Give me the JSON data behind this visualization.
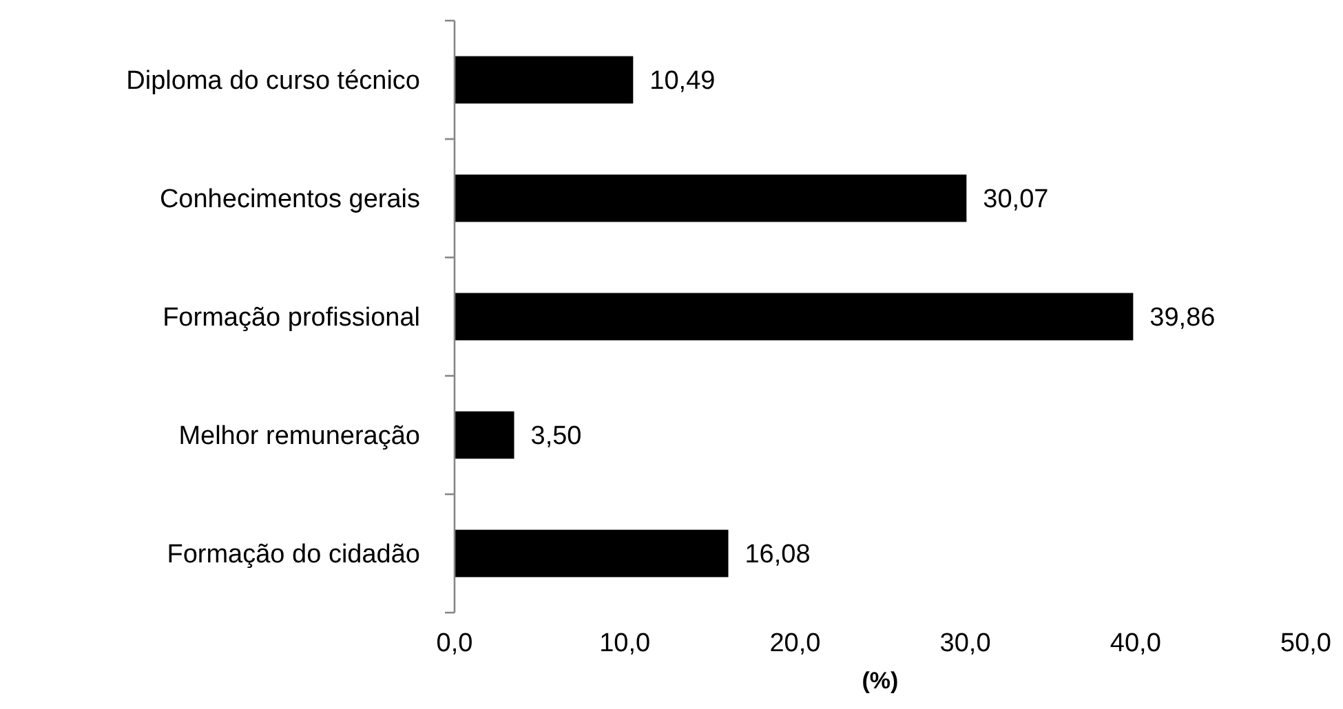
{
  "chart_data": {
    "type": "bar",
    "orientation": "horizontal",
    "xlabel": "(%)",
    "categories": [
      "Diploma do curso técnico",
      "Conhecimentos gerais",
      "Formação profissional",
      "Melhor remuneração",
      "Formação do cidadão"
    ],
    "values": [
      10.49,
      30.07,
      39.86,
      3.5,
      16.08
    ],
    "value_labels": [
      "10,49",
      "30,07",
      "39,86",
      "3,50",
      "16,08"
    ],
    "color": "#000000",
    "xlim": [
      0,
      50
    ],
    "xticks": [
      {
        "value": 0,
        "label": "0,0"
      },
      {
        "value": 10,
        "label": "10,0"
      },
      {
        "value": 20,
        "label": "20,0"
      },
      {
        "value": 30,
        "label": "30,0"
      },
      {
        "value": 40,
        "label": "40,0"
      },
      {
        "value": 50,
        "label": "50,0"
      }
    ],
    "grid": false
  }
}
